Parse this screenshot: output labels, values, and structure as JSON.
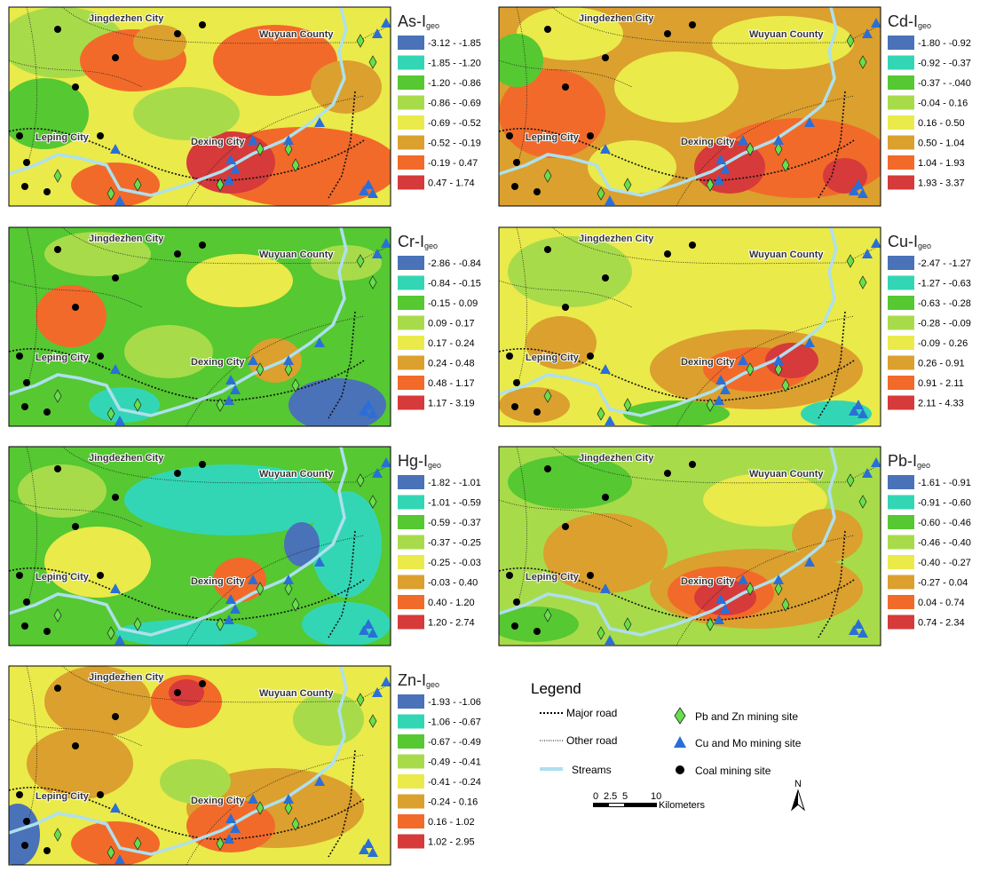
{
  "panels": [
    {
      "title": "As-I",
      "subscript": "geo",
      "classes": [
        "-3.12 - -1.85",
        "-1.85 - -1.20",
        "-1.20 - -0.86",
        "-0.86 - -0.69",
        "-0.69 - -0.52",
        "-0.52 - -0.19",
        "-0.19 - 0.47",
        "0.47 - 1.74"
      ]
    },
    {
      "title": "Cd-I",
      "subscript": "geo",
      "classes": [
        "-1.80 - -0.92",
        "-0.92 - -0.37",
        "-0.37 - -.040",
        "-0.04 - 0.16",
        "0.16 - 0.50",
        "0.50 - 1.04",
        "1.04 - 1.93",
        "1.93 - 3.37"
      ]
    },
    {
      "title": "Cr-I",
      "subscript": "geo",
      "classes": [
        "-2.86 - -0.84",
        "-0.84 - -0.15",
        "-0.15 - 0.09",
        "0.09 - 0.17",
        "0.17 - 0.24",
        "0.24 - 0.48",
        "0.48 - 1.17",
        "1.17 - 3.19"
      ]
    },
    {
      "title": "Cu-I",
      "subscript": "geo",
      "classes": [
        "-2.47 - -1.27",
        "-1.27 - -0.63",
        "-0.63 - -0.28",
        "-0.28 - -0.09",
        "-0.09 - 0.26",
        "0.26 - 0.91",
        "0.91 - 2.11",
        "2.11 - 4.33"
      ]
    },
    {
      "title": "Hg-I",
      "subscript": "geo",
      "classes": [
        "-1.82 - -1.01",
        "-1.01 - -0.59",
        "-0.59 - -0.37",
        "-0.37 - -0.25",
        "-0.25 - -0.03",
        "-0.03 - 0.40",
        "0.40 - 1.20",
        "1.20 - 2.74"
      ]
    },
    {
      "title": "Pb-I",
      "subscript": "geo",
      "classes": [
        "-1.61 - -0.91",
        "-0.91 - -0.60",
        "-0.60 - -0.46",
        "-0.46 - -0.40",
        "-0.40 - -0.27",
        "-0.27 - 0.04",
        "0.04 - 0.74",
        "0.74 - 2.34"
      ]
    },
    {
      "title": "Zn-I",
      "subscript": "geo",
      "classes": [
        "-1.93 - -1.06",
        "-1.06 - -0.67",
        "-0.67 - -0.49",
        "-0.49 - -0.41",
        "-0.41 - -0.24",
        "-0.24 - 0.16",
        "0.16 - 1.02",
        "1.02 - 2.95"
      ]
    }
  ],
  "class_colors": [
    "#4a72b8",
    "#33d6b4",
    "#55c832",
    "#a8db4a",
    "#eaea4a",
    "#dba02e",
    "#f26a2a",
    "#d63a3a"
  ],
  "map_labels": [
    "Jingdezhen City",
    "Wuyuan County",
    "Leping City",
    "Dexing City"
  ],
  "legend": {
    "title": "Legend",
    "items": [
      "Major road",
      "Other road",
      "Streams",
      "Pb and Zn mining site",
      "Cu and Mo mining site",
      "Coal mining site"
    ],
    "scale": [
      "0",
      "2.5",
      "5",
      "10",
      "Kilometers"
    ],
    "north": "N"
  }
}
